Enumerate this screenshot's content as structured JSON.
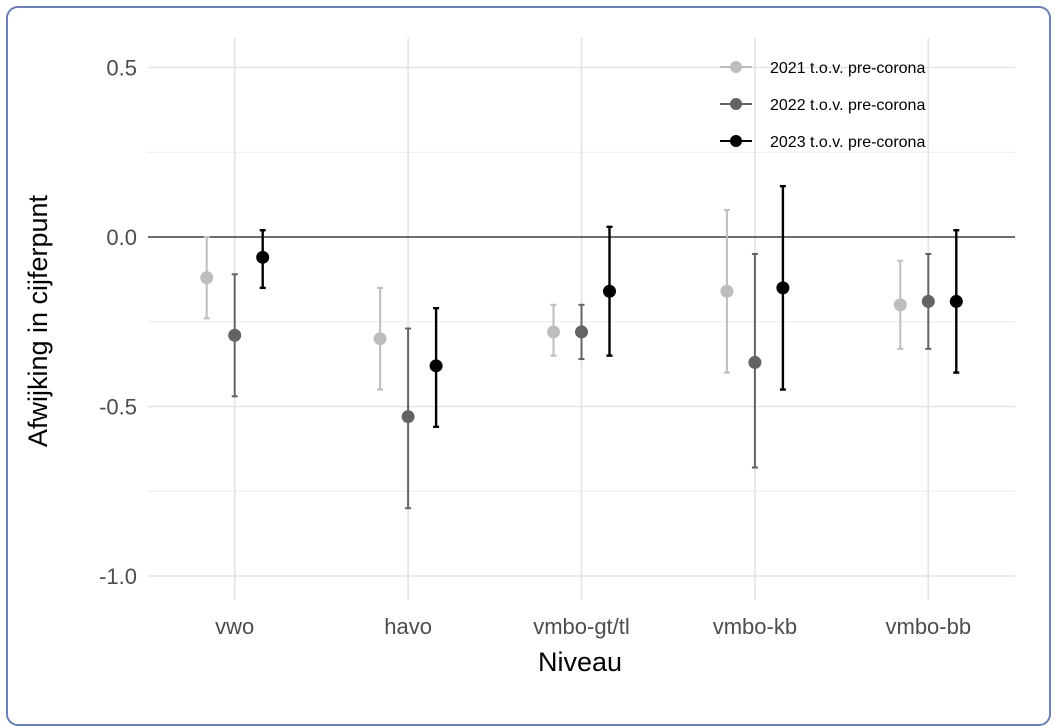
{
  "chart_data": {
    "type": "scatter",
    "title": "",
    "xlabel": "Niveau",
    "ylabel": "Afwijking in cijferpunt",
    "categories": [
      "vwo",
      "havo",
      "vmbo-gt/tl",
      "vmbo-kb",
      "vmbo-bb"
    ],
    "ylim": [
      -1.05,
      0.6
    ],
    "yticks": [
      0.5,
      0.0,
      -0.5,
      -1.0
    ],
    "ytick_labels": [
      "0.5",
      "0.0",
      "-0.5",
      "-1.0"
    ],
    "hline": 0.0,
    "grid": true,
    "legend_position": "top-right",
    "series": [
      {
        "name": "2021 t.o.v. pre-corona",
        "color": "#bdbdbd",
        "values": [
          -0.12,
          -0.3,
          -0.28,
          -0.16,
          -0.2
        ],
        "lower": [
          -0.24,
          -0.45,
          -0.35,
          -0.4,
          -0.33
        ],
        "upper": [
          0.0,
          -0.15,
          -0.2,
          0.08,
          -0.07
        ]
      },
      {
        "name": "2022 t.o.v. pre-corona",
        "color": "#636363",
        "values": [
          -0.29,
          -0.53,
          -0.28,
          -0.37,
          -0.19
        ],
        "lower": [
          -0.47,
          -0.8,
          -0.36,
          -0.68,
          -0.33
        ],
        "upper": [
          -0.11,
          -0.27,
          -0.2,
          -0.05,
          -0.05
        ]
      },
      {
        "name": "2023 t.o.v. pre-corona",
        "color": "#000000",
        "values": [
          -0.06,
          -0.38,
          -0.16,
          -0.15,
          -0.19
        ],
        "lower": [
          -0.15,
          -0.56,
          -0.35,
          -0.45,
          -0.4
        ],
        "upper": [
          0.02,
          -0.21,
          0.03,
          0.15,
          0.02
        ]
      }
    ]
  }
}
